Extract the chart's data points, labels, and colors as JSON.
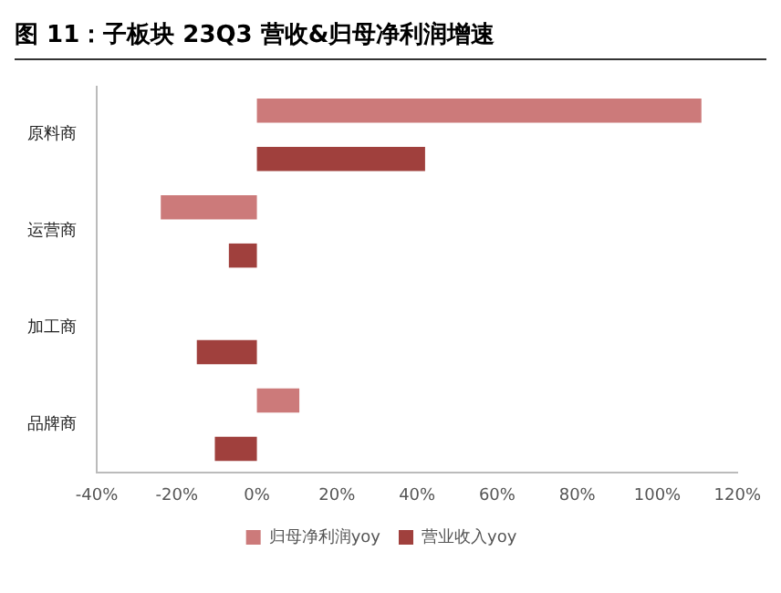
{
  "chart_data": {
    "type": "bar",
    "orientation": "horizontal",
    "title": "图 11：子板块 23Q3 营收&归母净利润增速",
    "categories": [
      "原料商",
      "运营商",
      "加工商",
      "品牌商"
    ],
    "series": [
      {
        "name": "归母净利润yoy",
        "color": "#cc7a7a",
        "values": [
          111,
          -24,
          0,
          10.6
        ]
      },
      {
        "name": "营业收入yoy",
        "color": "#a0403d",
        "values": [
          42,
          -7,
          -15,
          -10.5
        ]
      }
    ],
    "xlim": [
      -40,
      120
    ],
    "xticks": [
      {
        "value": -40,
        "label": "-40%"
      },
      {
        "value": -20,
        "label": "-20%"
      },
      {
        "value": 0,
        "label": "0%"
      },
      {
        "value": 20,
        "label": "20%"
      },
      {
        "value": 40,
        "label": "40%"
      },
      {
        "value": 60,
        "label": "60%"
      },
      {
        "value": 80,
        "label": "80%"
      },
      {
        "value": 100,
        "label": "100%"
      },
      {
        "value": 120,
        "label": "120%"
      }
    ],
    "grid": false,
    "legend": "bottom"
  }
}
